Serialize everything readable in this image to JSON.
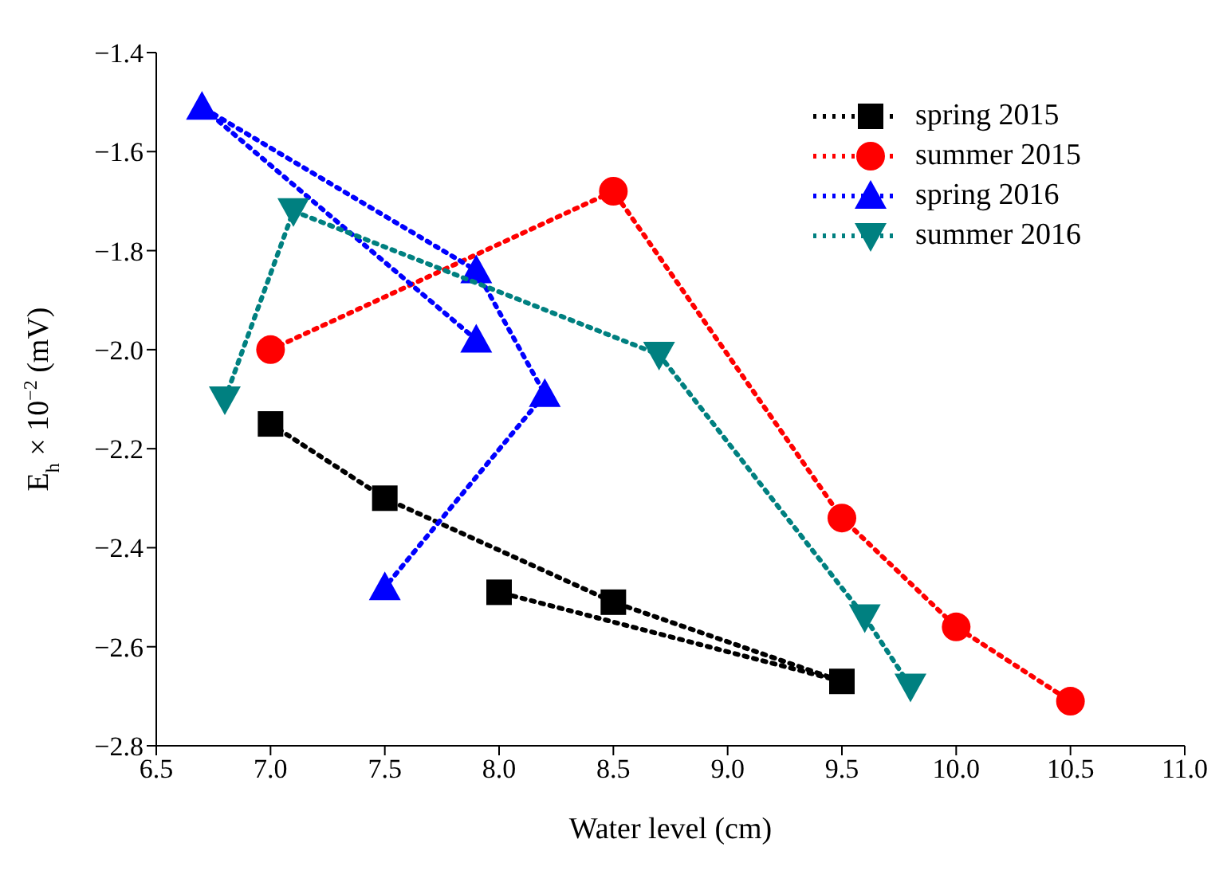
{
  "chart_data": {
    "type": "line",
    "xlabel": "Water level (cm)",
    "ylabel": "E$_{h}$ × 10$^{−2}$ (mV)",
    "xlim": [
      6.5,
      11.0
    ],
    "xticks": [
      {
        "value": 6.5,
        "label": "6.5"
      },
      {
        "value": 7,
        "label": "7.0"
      },
      {
        "value": 7.5,
        "label": "7.5"
      },
      {
        "value": 8,
        "label": "8.0"
      },
      {
        "value": 8.5,
        "label": "8.5"
      },
      {
        "value": 9,
        "label": "9.0"
      },
      {
        "value": 9.5,
        "label": "9.5"
      },
      {
        "value": 10,
        "label": "10.0"
      },
      {
        "value": 10.5,
        "label": "10.5"
      },
      {
        "value": 11,
        "label": "11.0"
      }
    ],
    "ylim": [
      -2.8,
      -1.4
    ],
    "yticks": [
      {
        "value": -2.8,
        "label": "−2.8"
      },
      {
        "value": -2.6,
        "label": "−2.6"
      },
      {
        "value": -2.4,
        "label": "−2.4"
      },
      {
        "value": -2.2,
        "label": "−2.2"
      },
      {
        "value": -2.0,
        "label": "−2.0"
      },
      {
        "value": -1.8,
        "label": "−1.8"
      },
      {
        "value": -1.6,
        "label": "−1.6"
      },
      {
        "value": -1.4,
        "label": "−1.4"
      }
    ],
    "grid": false,
    "legend": "top right",
    "line_style": "dotted",
    "series": [
      {
        "name": "spring 2015",
        "color": "#000000",
        "marker": "square",
        "x": [
          7.0,
          7.5,
          8.5,
          9.5,
          8.0
        ],
        "values": [
          -2.15,
          -2.3,
          -2.51,
          -2.67,
          -2.49
        ]
      },
      {
        "name": "summer 2015",
        "color": "#ff0000",
        "marker": "circle",
        "x": [
          7.0,
          8.5,
          9.5,
          10.0,
          10.5
        ],
        "values": [
          -2.0,
          -1.68,
          -2.34,
          -2.56,
          -2.71
        ]
      },
      {
        "name": "spring 2016",
        "color": "#0000ff",
        "marker": "triangle",
        "x": [
          7.9,
          6.7,
          7.9,
          8.2,
          7.5
        ],
        "values": [
          -1.98,
          -1.51,
          -1.84,
          -2.09,
          -2.48
        ]
      },
      {
        "name": "summer 2016",
        "color": "#008080",
        "marker": "triangle-down",
        "x": [
          6.8,
          7.1,
          8.7,
          9.6,
          9.8
        ],
        "values": [
          -2.1,
          -1.72,
          -2.01,
          -2.54,
          -2.68
        ]
      }
    ]
  }
}
